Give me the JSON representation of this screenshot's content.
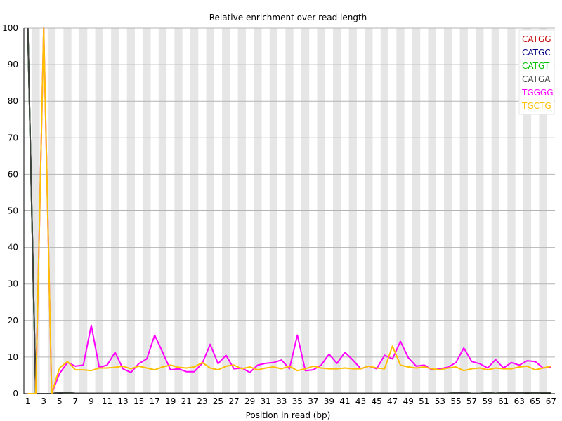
{
  "chart_data": {
    "type": "line",
    "title": "Relative enrichment over read length",
    "xlabel": "Position in read (bp)",
    "ylabel": "",
    "ylim": [
      0,
      100
    ],
    "yticks": [
      0,
      10,
      20,
      30,
      40,
      50,
      60,
      70,
      80,
      90,
      100
    ],
    "x": [
      1,
      2,
      3,
      4,
      5,
      6,
      7,
      8,
      9,
      10,
      11,
      12,
      13,
      14,
      15,
      16,
      17,
      18,
      19,
      20,
      21,
      22,
      23,
      24,
      25,
      26,
      27,
      28,
      29,
      30,
      31,
      32,
      33,
      34,
      35,
      36,
      37,
      38,
      39,
      40,
      41,
      42,
      43,
      44,
      45,
      46,
      47,
      48,
      49,
      50,
      51,
      52,
      53,
      54,
      55,
      56,
      57,
      58,
      59,
      60,
      61,
      62,
      63,
      64,
      65,
      66,
      67
    ],
    "xtick_labels": [
      "1",
      "3",
      "5",
      "7",
      "9",
      "11",
      "13",
      "15",
      "17",
      "19",
      "21",
      "23",
      "25",
      "27",
      "29",
      "31",
      "33",
      "35",
      "37",
      "39",
      "41",
      "43",
      "45",
      "47",
      "49",
      "51",
      "53",
      "55",
      "57",
      "59",
      "61",
      "63",
      "65",
      "67"
    ],
    "legend_position": "top-right",
    "grid": "alternating-bands",
    "series": [
      {
        "name": "CATGG",
        "color": "#c00000",
        "values": [
          100,
          0,
          0,
          0,
          0.3,
          0.2,
          0.1,
          0.1,
          0.1,
          0.1,
          0.1,
          0.1,
          0.1,
          0.1,
          0.1,
          0.1,
          0.1,
          0.1,
          0.1,
          0.1,
          0.1,
          0.1,
          0.1,
          0.1,
          0.1,
          0.1,
          0.1,
          0.1,
          0.1,
          0.1,
          0.1,
          0.1,
          0.1,
          0.1,
          0.1,
          0.1,
          0.1,
          0.1,
          0.1,
          0.1,
          0.1,
          0.1,
          0.1,
          0.1,
          0.1,
          0.1,
          0.1,
          0.1,
          0.1,
          0.1,
          0.1,
          0.1,
          0.1,
          0.1,
          0.2,
          0.2,
          0.1,
          0.1,
          0.2,
          0.1,
          0.2,
          0.2,
          0.2,
          0.3,
          0.2,
          0.3,
          0.3
        ]
      },
      {
        "name": "CATGC",
        "color": "#000080",
        "values": [
          100,
          0,
          0,
          0,
          0.3,
          0.2,
          0.1,
          0.1,
          0.1,
          0.1,
          0.1,
          0.1,
          0.1,
          0.1,
          0.1,
          0.1,
          0.1,
          0.1,
          0.1,
          0.1,
          0.1,
          0.1,
          0.1,
          0.1,
          0.1,
          0.1,
          0.1,
          0.1,
          0.1,
          0.1,
          0.1,
          0.1,
          0.1,
          0.1,
          0.1,
          0.1,
          0.1,
          0.1,
          0.1,
          0.1,
          0.1,
          0.1,
          0.1,
          0.1,
          0.1,
          0.1,
          0.1,
          0.1,
          0.1,
          0.1,
          0.1,
          0.1,
          0.1,
          0.1,
          0.2,
          0.2,
          0.1,
          0.1,
          0.2,
          0.1,
          0.2,
          0.2,
          0.2,
          0.3,
          0.2,
          0.3,
          0.3
        ]
      },
      {
        "name": "CATGT",
        "color": "#00c000",
        "values": [
          100,
          0,
          0,
          0,
          0.3,
          0.2,
          0.1,
          0.1,
          0.1,
          0.1,
          0.1,
          0.1,
          0.1,
          0.1,
          0.1,
          0.1,
          0.1,
          0.1,
          0.1,
          0.1,
          0.1,
          0.1,
          0.1,
          0.1,
          0.1,
          0.1,
          0.1,
          0.1,
          0.1,
          0.1,
          0.1,
          0.1,
          0.1,
          0.1,
          0.1,
          0.1,
          0.1,
          0.1,
          0.1,
          0.1,
          0.1,
          0.1,
          0.1,
          0.1,
          0.1,
          0.1,
          0.1,
          0.1,
          0.1,
          0.1,
          0.1,
          0.1,
          0.1,
          0.1,
          0.2,
          0.2,
          0.1,
          0.1,
          0.2,
          0.1,
          0.2,
          0.2,
          0.2,
          0.3,
          0.2,
          0.3,
          0.3
        ]
      },
      {
        "name": "CATGA",
        "color": "#404040",
        "values": [
          100,
          0,
          0,
          0,
          0.3,
          0.2,
          0.1,
          0.1,
          0.1,
          0.1,
          0.1,
          0.1,
          0.1,
          0.1,
          0.1,
          0.1,
          0.1,
          0.1,
          0.1,
          0.1,
          0.1,
          0.1,
          0.1,
          0.1,
          0.1,
          0.1,
          0.1,
          0.1,
          0.1,
          0.1,
          0.1,
          0.1,
          0.1,
          0.1,
          0.1,
          0.1,
          0.1,
          0.1,
          0.1,
          0.1,
          0.1,
          0.1,
          0.1,
          0.1,
          0.1,
          0.1,
          0.1,
          0.1,
          0.1,
          0.1,
          0.1,
          0.1,
          0.1,
          0.1,
          0.2,
          0.2,
          0.1,
          0.1,
          0.2,
          0.1,
          0.2,
          0.2,
          0.2,
          0.3,
          0.2,
          0.3,
          0.3
        ]
      },
      {
        "name": "TGGGG",
        "color": "#ff00ff",
        "values": [
          0,
          0,
          100,
          0,
          5.5,
          8.5,
          7.5,
          7.8,
          18.7,
          7.2,
          7.8,
          11.3,
          6.8,
          5.8,
          8.2,
          9.5,
          16.0,
          11.3,
          6.5,
          6.8,
          6.0,
          6.0,
          8.3,
          13.5,
          8.2,
          10.5,
          6.8,
          7.0,
          5.8,
          7.8,
          8.3,
          8.5,
          9.2,
          6.8,
          16.0,
          6.3,
          6.5,
          7.8,
          10.8,
          8.3,
          11.3,
          9.2,
          6.8,
          7.5,
          6.8,
          10.5,
          9.5,
          14.3,
          9.8,
          7.5,
          7.8,
          6.5,
          6.8,
          7.2,
          8.5,
          12.5,
          8.8,
          8.2,
          7.0,
          9.3,
          7.0,
          8.5,
          7.8,
          9.0,
          8.8,
          7.0,
          7.3
        ]
      },
      {
        "name": "TGCTG",
        "color": "#ffc000",
        "values": [
          0,
          0,
          100,
          0,
          7.0,
          8.8,
          6.5,
          6.5,
          6.3,
          7.0,
          7.0,
          7.2,
          7.5,
          6.8,
          7.5,
          7.0,
          6.5,
          7.3,
          7.8,
          7.2,
          7.0,
          7.3,
          8.5,
          7.0,
          6.5,
          7.5,
          7.8,
          6.8,
          7.3,
          6.5,
          7.0,
          7.3,
          6.8,
          7.5,
          6.3,
          6.8,
          7.5,
          7.0,
          6.8,
          6.8,
          7.0,
          6.8,
          6.8,
          7.5,
          7.0,
          6.8,
          13.0,
          7.8,
          7.3,
          7.0,
          7.3,
          6.8,
          6.5,
          7.0,
          7.3,
          6.3,
          6.8,
          7.0,
          6.5,
          7.0,
          6.8,
          6.8,
          7.3,
          7.5,
          6.5,
          7.0,
          7.5
        ]
      }
    ]
  }
}
